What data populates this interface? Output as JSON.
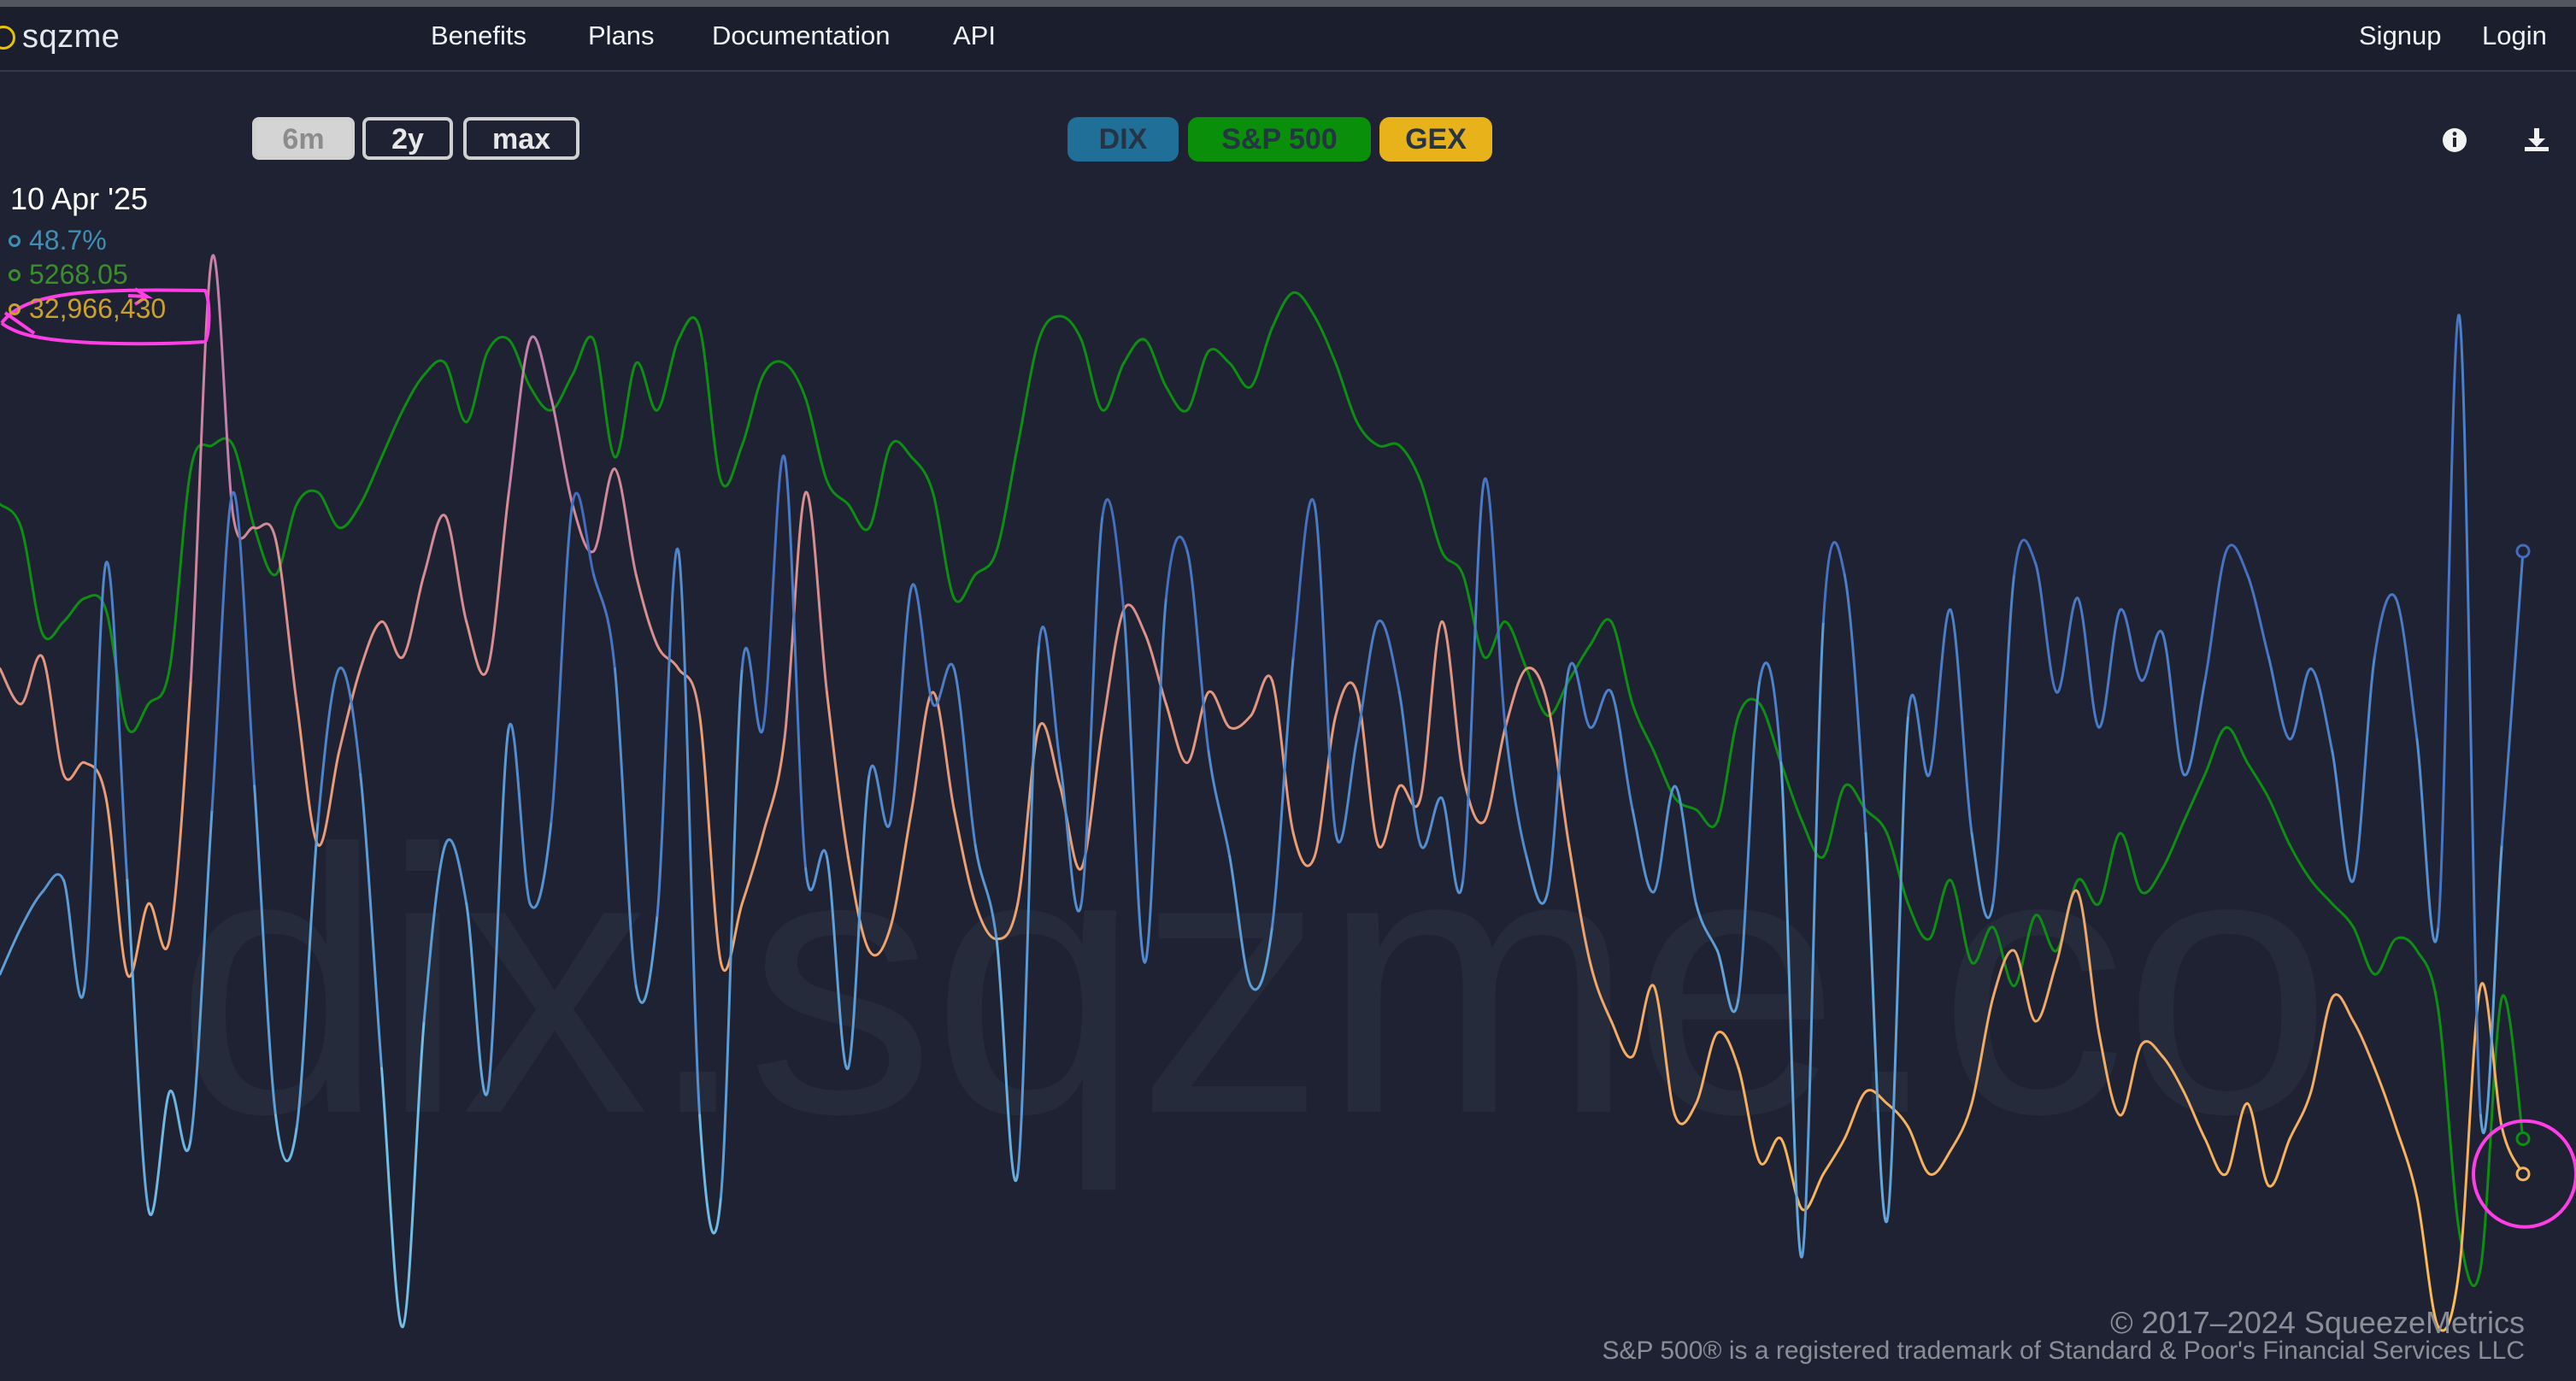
{
  "brand": {
    "name": "sqzme"
  },
  "nav": {
    "links": [
      "Benefits",
      "Plans",
      "Documentation",
      "API"
    ],
    "signup": "Signup",
    "login": "Login"
  },
  "range_buttons": {
    "six_m": "6m",
    "two_y": "2y",
    "max": "max",
    "selected": "6m"
  },
  "series_buttons": {
    "dix": {
      "label": "DIX",
      "color": "#1f6f98"
    },
    "spx": {
      "label": "S&P 500",
      "color": "#0a8f0a"
    },
    "gex": {
      "label": "GEX",
      "color": "#e8b21a"
    }
  },
  "icons": {
    "info": "info-icon",
    "download": "download-icon"
  },
  "readout": {
    "date": "10 Apr '25",
    "dix": "48.7%",
    "spx": "5268.05",
    "gex": "32,966,430",
    "dix_color": "#3f8fb5",
    "spx_color": "#3a8f2a",
    "gex_color": "#caa030"
  },
  "watermark": "dix.sqzme.co",
  "footer": {
    "copyright": "© 2017–2024 SqueezeMetrics",
    "trademark": "S&P 500® is a registered trademark of Standard & Poor's Financial Services LLC"
  },
  "annotation_color": "#ff3ee6",
  "chart_data": {
    "type": "line",
    "x_count": 120,
    "y_axis": "not labeled",
    "grid": false,
    "legend": "top-center buttons",
    "series": [
      {
        "name": "DIX",
        "color_scale": [
          "#7fd4ee",
          "#4f86cc",
          "#2f3fa6"
        ],
        "values": [
          0.32,
          0.36,
          0.39,
          0.4,
          0.31,
          0.67,
          0.4,
          0.12,
          0.22,
          0.18,
          0.46,
          0.73,
          0.48,
          0.2,
          0.19,
          0.45,
          0.58,
          0.49,
          0.24,
          0.02,
          0.28,
          0.43,
          0.38,
          0.22,
          0.53,
          0.38,
          0.45,
          0.72,
          0.66,
          0.58,
          0.31,
          0.37,
          0.68,
          0.2,
          0.13,
          0.58,
          0.53,
          0.76,
          0.41,
          0.42,
          0.24,
          0.49,
          0.45,
          0.65,
          0.55,
          0.58,
          0.43,
          0.35,
          0.15,
          0.6,
          0.5,
          0.38,
          0.71,
          0.63,
          0.33,
          0.64,
          0.68,
          0.51,
          0.42,
          0.31,
          0.36,
          0.59,
          0.72,
          0.44,
          0.52,
          0.62,
          0.56,
          0.43,
          0.47,
          0.4,
          0.74,
          0.53,
          0.42,
          0.39,
          0.58,
          0.53,
          0.56,
          0.46,
          0.39,
          0.48,
          0.38,
          0.34,
          0.3,
          0.57,
          0.5,
          0.08,
          0.62,
          0.66,
          0.44,
          0.11,
          0.54,
          0.49,
          0.63,
          0.44,
          0.38,
          0.66,
          0.67,
          0.56,
          0.64,
          0.53,
          0.63,
          0.57,
          0.61,
          0.49,
          0.57,
          0.68,
          0.66,
          0.59,
          0.52,
          0.58,
          0.51,
          0.4,
          0.59,
          0.64,
          0.52,
          0.36,
          0.88,
          0.2,
          0.43,
          0.68
        ]
      },
      {
        "name": "S&P 500",
        "color": "#0c8f12",
        "values": [
          0.72,
          0.7,
          0.61,
          0.62,
          0.64,
          0.63,
          0.53,
          0.55,
          0.58,
          0.75,
          0.77,
          0.77,
          0.7,
          0.66,
          0.72,
          0.73,
          0.7,
          0.72,
          0.76,
          0.8,
          0.83,
          0.84,
          0.79,
          0.85,
          0.86,
          0.82,
          0.8,
          0.83,
          0.86,
          0.76,
          0.84,
          0.8,
          0.86,
          0.87,
          0.74,
          0.77,
          0.83,
          0.84,
          0.81,
          0.74,
          0.72,
          0.7,
          0.77,
          0.76,
          0.73,
          0.64,
          0.66,
          0.68,
          0.77,
          0.86,
          0.88,
          0.86,
          0.8,
          0.84,
          0.86,
          0.82,
          0.8,
          0.85,
          0.84,
          0.82,
          0.87,
          0.9,
          0.88,
          0.84,
          0.79,
          0.77,
          0.77,
          0.74,
          0.68,
          0.66,
          0.59,
          0.62,
          0.58,
          0.54,
          0.57,
          0.6,
          0.62,
          0.55,
          0.51,
          0.47,
          0.46,
          0.45,
          0.54,
          0.55,
          0.5,
          0.45,
          0.42,
          0.48,
          0.46,
          0.44,
          0.38,
          0.35,
          0.4,
          0.33,
          0.36,
          0.31,
          0.37,
          0.34,
          0.4,
          0.38,
          0.44,
          0.39,
          0.41,
          0.45,
          0.49,
          0.53,
          0.5,
          0.47,
          0.43,
          0.4,
          0.38,
          0.36,
          0.32,
          0.35,
          0.34,
          0.29,
          0.1,
          0.07,
          0.3,
          0.18
        ]
      },
      {
        "name": "GEX",
        "color_scale": [
          "#ffbf4d",
          "#e89a7a",
          "#b070c8"
        ],
        "values": [
          0.58,
          0.55,
          0.59,
          0.49,
          0.5,
          0.47,
          0.32,
          0.38,
          0.35,
          0.57,
          0.93,
          0.71,
          0.7,
          0.69,
          0.55,
          0.43,
          0.51,
          0.58,
          0.62,
          0.59,
          0.66,
          0.71,
          0.62,
          0.58,
          0.73,
          0.86,
          0.81,
          0.72,
          0.68,
          0.75,
          0.66,
          0.6,
          0.58,
          0.54,
          0.33,
          0.38,
          0.44,
          0.52,
          0.73,
          0.56,
          0.42,
          0.34,
          0.36,
          0.46,
          0.56,
          0.46,
          0.38,
          0.35,
          0.38,
          0.53,
          0.48,
          0.41,
          0.53,
          0.63,
          0.61,
          0.55,
          0.5,
          0.56,
          0.53,
          0.54,
          0.57,
          0.44,
          0.42,
          0.54,
          0.56,
          0.43,
          0.48,
          0.47,
          0.62,
          0.49,
          0.45,
          0.53,
          0.58,
          0.55,
          0.43,
          0.33,
          0.28,
          0.25,
          0.31,
          0.2,
          0.21,
          0.27,
          0.24,
          0.16,
          0.18,
          0.12,
          0.15,
          0.18,
          0.22,
          0.21,
          0.19,
          0.15,
          0.17,
          0.21,
          0.3,
          0.34,
          0.28,
          0.33,
          0.39,
          0.27,
          0.2,
          0.26,
          0.25,
          0.22,
          0.18,
          0.15,
          0.21,
          0.14,
          0.18,
          0.22,
          0.3,
          0.28,
          0.24,
          0.19,
          0.13,
          0.02,
          0.07,
          0.31,
          0.19,
          0.15
        ]
      }
    ]
  }
}
